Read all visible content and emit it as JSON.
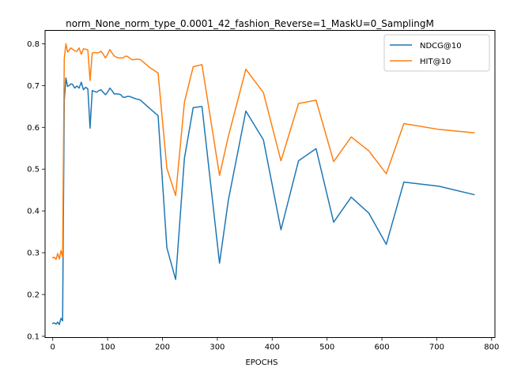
{
  "chart_data": {
    "type": "line",
    "title": "norm_None_norm_type_0.0001_42_fashion_Reverse=1_MaskU=0_SamplingM",
    "xlabel": "EPOCHS",
    "ylabel": "",
    "xlim": [
      -14,
      806
    ],
    "ylim": [
      0.097,
      0.832
    ],
    "xticks": [
      0,
      100,
      200,
      300,
      400,
      500,
      600,
      700,
      800
    ],
    "yticks": [
      0.1,
      0.2,
      0.3,
      0.4,
      0.5,
      0.6,
      0.7,
      0.8
    ],
    "grid": false,
    "legend_position": "top-right",
    "series": [
      {
        "name": "NDCG@10",
        "color": "#1f77b4",
        "x": [
          0,
          3,
          6,
          9,
          12,
          15,
          18,
          21,
          24,
          27,
          30,
          33,
          36,
          40,
          44,
          48,
          52,
          56,
          60,
          64,
          68,
          72,
          76,
          80,
          84,
          88,
          92,
          96,
          100,
          104,
          108,
          112,
          116,
          120,
          124,
          128,
          132,
          136,
          140,
          144,
          148,
          152,
          156,
          160,
          176,
          192,
          208,
          224,
          240,
          256,
          272,
          304,
          320,
          352,
          384,
          416,
          448,
          480,
          512,
          544,
          576,
          608,
          640,
          704,
          768
        ],
        "y": [
          0.131,
          0.132,
          0.129,
          0.134,
          0.128,
          0.143,
          0.137,
          0.665,
          0.718,
          0.698,
          0.7,
          0.704,
          0.703,
          0.694,
          0.699,
          0.694,
          0.708,
          0.69,
          0.696,
          0.692,
          0.598,
          0.688,
          0.686,
          0.684,
          0.688,
          0.69,
          0.684,
          0.678,
          0.684,
          0.694,
          0.688,
          0.68,
          0.68,
          0.68,
          0.678,
          0.672,
          0.672,
          0.674,
          0.674,
          0.672,
          0.67,
          0.668,
          0.667,
          0.665,
          0.646,
          0.628,
          0.312,
          0.236,
          0.526,
          0.647,
          0.65,
          0.275,
          0.425,
          0.639,
          0.57,
          0.355,
          0.52,
          0.549,
          0.373,
          0.433,
          0.395,
          0.32,
          0.469,
          0.459,
          0.439
        ]
      },
      {
        "name": "HIT@10",
        "color": "#ff7f0e",
        "x": [
          0,
          3,
          6,
          9,
          12,
          15,
          18,
          21,
          24,
          27,
          30,
          33,
          36,
          40,
          44,
          48,
          52,
          56,
          60,
          64,
          68,
          72,
          76,
          80,
          84,
          88,
          92,
          96,
          100,
          104,
          108,
          112,
          116,
          120,
          124,
          128,
          132,
          136,
          140,
          144,
          148,
          152,
          156,
          160,
          176,
          192,
          208,
          224,
          240,
          256,
          272,
          304,
          320,
          352,
          384,
          416,
          448,
          480,
          512,
          544,
          576,
          608,
          640,
          704,
          768
        ],
        "y": [
          0.288,
          0.289,
          0.284,
          0.298,
          0.285,
          0.305,
          0.29,
          0.765,
          0.8,
          0.78,
          0.785,
          0.79,
          0.787,
          0.783,
          0.782,
          0.79,
          0.775,
          0.788,
          0.787,
          0.785,
          0.712,
          0.778,
          0.779,
          0.778,
          0.779,
          0.782,
          0.775,
          0.766,
          0.775,
          0.786,
          0.778,
          0.771,
          0.768,
          0.766,
          0.766,
          0.766,
          0.77,
          0.77,
          0.766,
          0.762,
          0.762,
          0.763,
          0.763,
          0.762,
          0.744,
          0.73,
          0.502,
          0.437,
          0.66,
          0.745,
          0.75,
          0.485,
          0.578,
          0.739,
          0.683,
          0.52,
          0.657,
          0.665,
          0.518,
          0.577,
          0.544,
          0.489,
          0.609,
          0.595,
          0.587
        ]
      }
    ]
  }
}
